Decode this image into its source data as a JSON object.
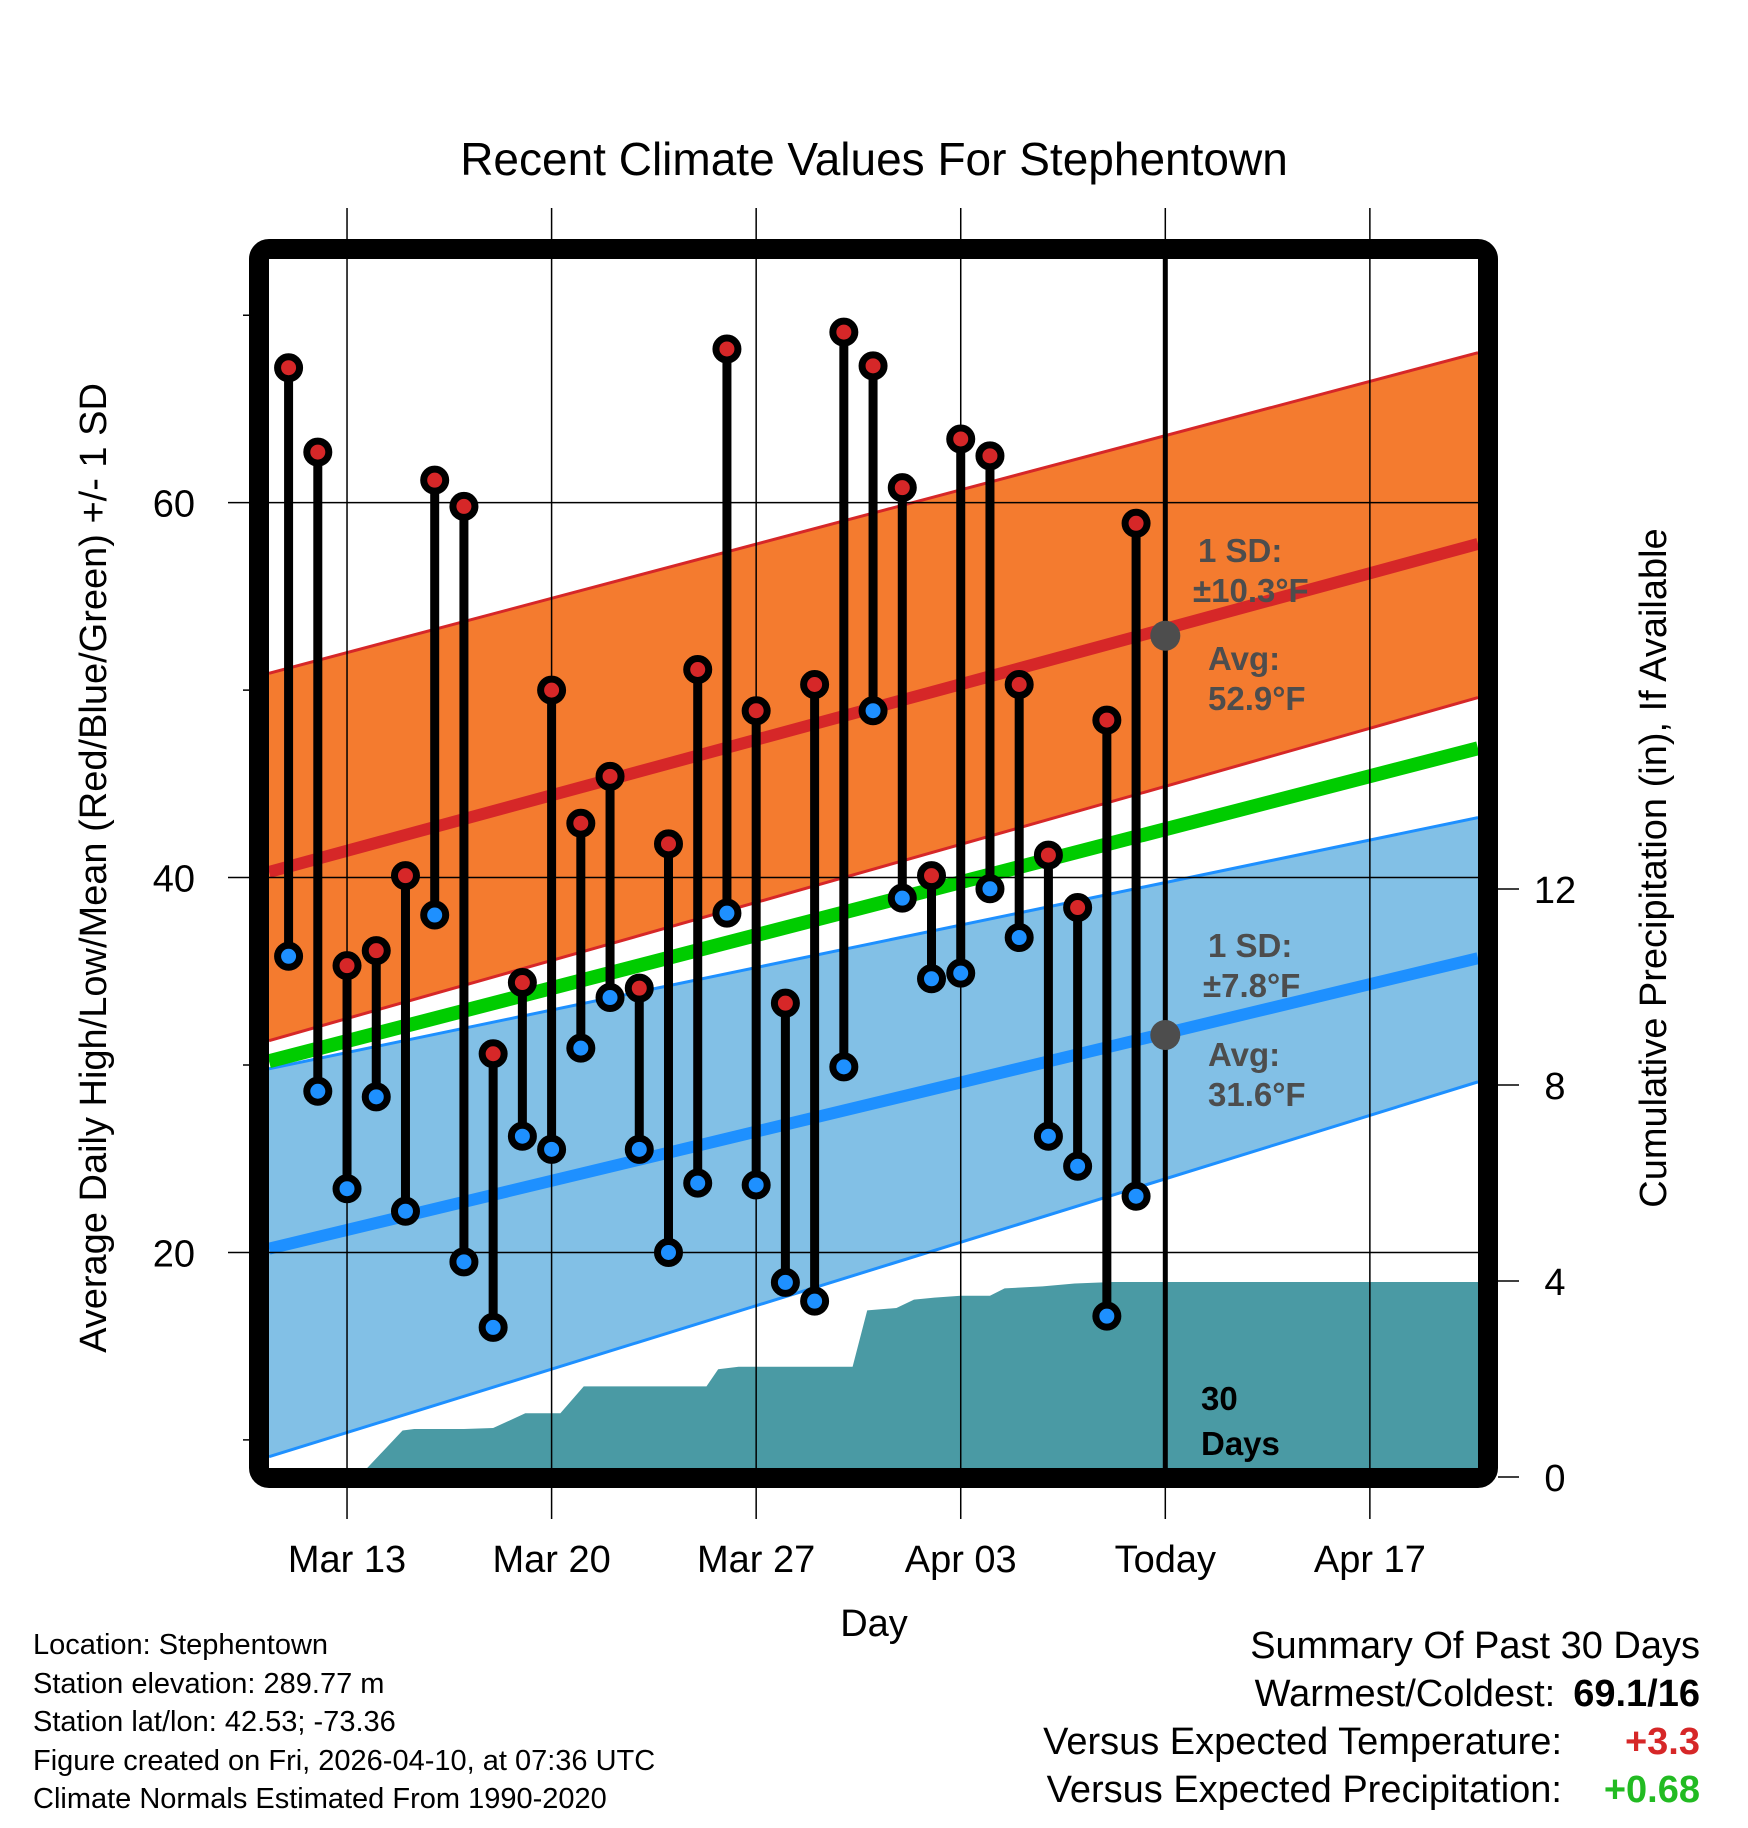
{
  "chart_data": {
    "type": "line",
    "title": "Recent Climate Values For Stephentown",
    "xlabel": "Day",
    "ylabel_left": "Average Daily High/Low/Mean (Red/Blue/Green) +/- 1 SD",
    "ylabel_right": "Cumulative Precipitation (in), If Available",
    "x_start_date": "Mar 11",
    "x_range_days": [
      -0.67,
      40.7
    ],
    "ylim_left": [
      8.5,
      73.0
    ],
    "ylim_right": [
      0,
      16
    ],
    "grid": true,
    "x_ticks": [
      {
        "day": 2,
        "label": "Mar 13"
      },
      {
        "day": 9,
        "label": "Mar 20"
      },
      {
        "day": 16,
        "label": "Mar 27"
      },
      {
        "day": 23,
        "label": "Apr 03"
      },
      {
        "day": 30,
        "label": "Today"
      },
      {
        "day": 37,
        "label": "Apr 17"
      }
    ],
    "y_ticks_left": [
      {
        "value": 20,
        "label": "20"
      },
      {
        "value": 40,
        "label": "40"
      },
      {
        "value": 60,
        "label": "60"
      }
    ],
    "y_minor_ticks_left": [
      10,
      30,
      50,
      70
    ],
    "y_ticks_right": [
      {
        "value": 0,
        "label": "0"
      },
      {
        "value": 4,
        "label": "4"
      },
      {
        "value": 8,
        "label": "8"
      },
      {
        "value": 12,
        "label": "12"
      }
    ],
    "days": [
      "Mar 11",
      "Mar 12",
      "Mar 13",
      "Mar 14",
      "Mar 15",
      "Mar 16",
      "Mar 17",
      "Mar 18",
      "Mar 19",
      "Mar 20",
      "Mar 21",
      "Mar 22",
      "Mar 23",
      "Mar 24",
      "Mar 25",
      "Mar 26",
      "Mar 27",
      "Mar 28",
      "Mar 29",
      "Mar 30",
      "Mar 31",
      "Apr 01",
      "Apr 02",
      "Apr 03",
      "Apr 04",
      "Apr 05",
      "Apr 06",
      "Apr 07",
      "Apr 08",
      "Apr 09"
    ],
    "series": [
      {
        "name": "Daily High",
        "color": "#d62728",
        "values": [
          67.2,
          62.7,
          35.3,
          36.1,
          40.1,
          61.2,
          59.8,
          30.6,
          34.4,
          50.0,
          42.9,
          45.4,
          34.1,
          41.8,
          51.1,
          68.2,
          48.9,
          33.3,
          50.3,
          69.1,
          67.3,
          60.8,
          40.1,
          63.4,
          62.5,
          50.3,
          41.2,
          38.4,
          48.4,
          58.9
        ]
      },
      {
        "name": "Daily Low",
        "color": "#1e90ff",
        "values": [
          35.8,
          28.6,
          23.4,
          28.3,
          22.2,
          38.0,
          19.5,
          16.0,
          26.2,
          25.5,
          30.9,
          33.6,
          25.5,
          20.0,
          23.7,
          38.1,
          23.6,
          18.4,
          17.4,
          29.9,
          48.9,
          38.9,
          34.6,
          34.9,
          39.4,
          36.8,
          26.2,
          24.6,
          16.6,
          23.0
        ]
      }
    ],
    "normals": {
      "x_days": [
        -0.67,
        40.7
      ],
      "high_mean": [
        40.3,
        57.8
      ],
      "high_sd_upper": [
        50.9,
        68.0
      ],
      "high_sd_lower": [
        31.3,
        49.6
      ],
      "mean": [
        30.2,
        46.9
      ],
      "low_mean": [
        20.2,
        35.7
      ],
      "low_sd_upper": [
        29.8,
        43.2
      ],
      "low_sd_lower": [
        9.1,
        29.1
      ]
    },
    "precipitation": {
      "name": "Cumulative Precipitation",
      "color": "#4a9aa4",
      "x_days": [
        2.4,
        3.9,
        4.3,
        5.3,
        6.0,
        7.0,
        8.1,
        8.4,
        9.3,
        10.1,
        10.5,
        11.7,
        12.3,
        14.3,
        14.7,
        15.4,
        17.4,
        19.3,
        19.8,
        20.8,
        21.4,
        22.1,
        23.0,
        24.0,
        24.5,
        25.8,
        26.9,
        28.2,
        30.0,
        40.7
      ],
      "values": [
        0.0,
        0.95,
        0.98,
        0.98,
        0.98,
        1.0,
        1.3,
        1.3,
        1.3,
        1.85,
        1.85,
        1.85,
        1.85,
        1.85,
        2.2,
        2.25,
        2.25,
        2.25,
        3.4,
        3.45,
        3.62,
        3.66,
        3.7,
        3.7,
        3.85,
        3.89,
        3.95,
        3.98,
        3.98,
        3.98
      ]
    },
    "annotations": {
      "high_sd": "1 SD:",
      "high_sd_val": "±10.3°F",
      "high_avg": "Avg:",
      "high_avg_val": "52.9°F",
      "low_sd": "1 SD:",
      "low_sd_val": "±7.8°F",
      "low_avg": "Avg:",
      "low_avg_val": "31.6°F",
      "today_high_avg": 52.9,
      "today_low_avg": 31.6,
      "window_line1": "30",
      "window_line2": "Days"
    },
    "colors": {
      "high_band": "#f47b2f",
      "high_line": "#d62728",
      "low_band": "#82c0e6",
      "low_line": "#1e90ff",
      "mean_line": "#00cc00",
      "precip": "#4a9aa4",
      "annotation": "#4d4d4d"
    }
  },
  "info": {
    "location": "Location: Stephentown",
    "elevation": "Station elevation: 289.77 m",
    "latlon": "Station lat/lon: 42.53; -73.36",
    "created": "Figure created on Fri, 2026-04-10, at 07:36 UTC",
    "normals": "Climate Normals Estimated From 1990-2020"
  },
  "summary": {
    "heading": "Summary Of Past 30 Days",
    "warmest_label": "Warmest/Coldest:",
    "warmest_value": "69.1/16",
    "temp_label": "Versus Expected Temperature:",
    "temp_value": "+3.3",
    "temp_color": "#d62728",
    "precip_label": "Versus Expected Precipitation:",
    "precip_value": "+0.68",
    "precip_color": "#22bb22"
  }
}
